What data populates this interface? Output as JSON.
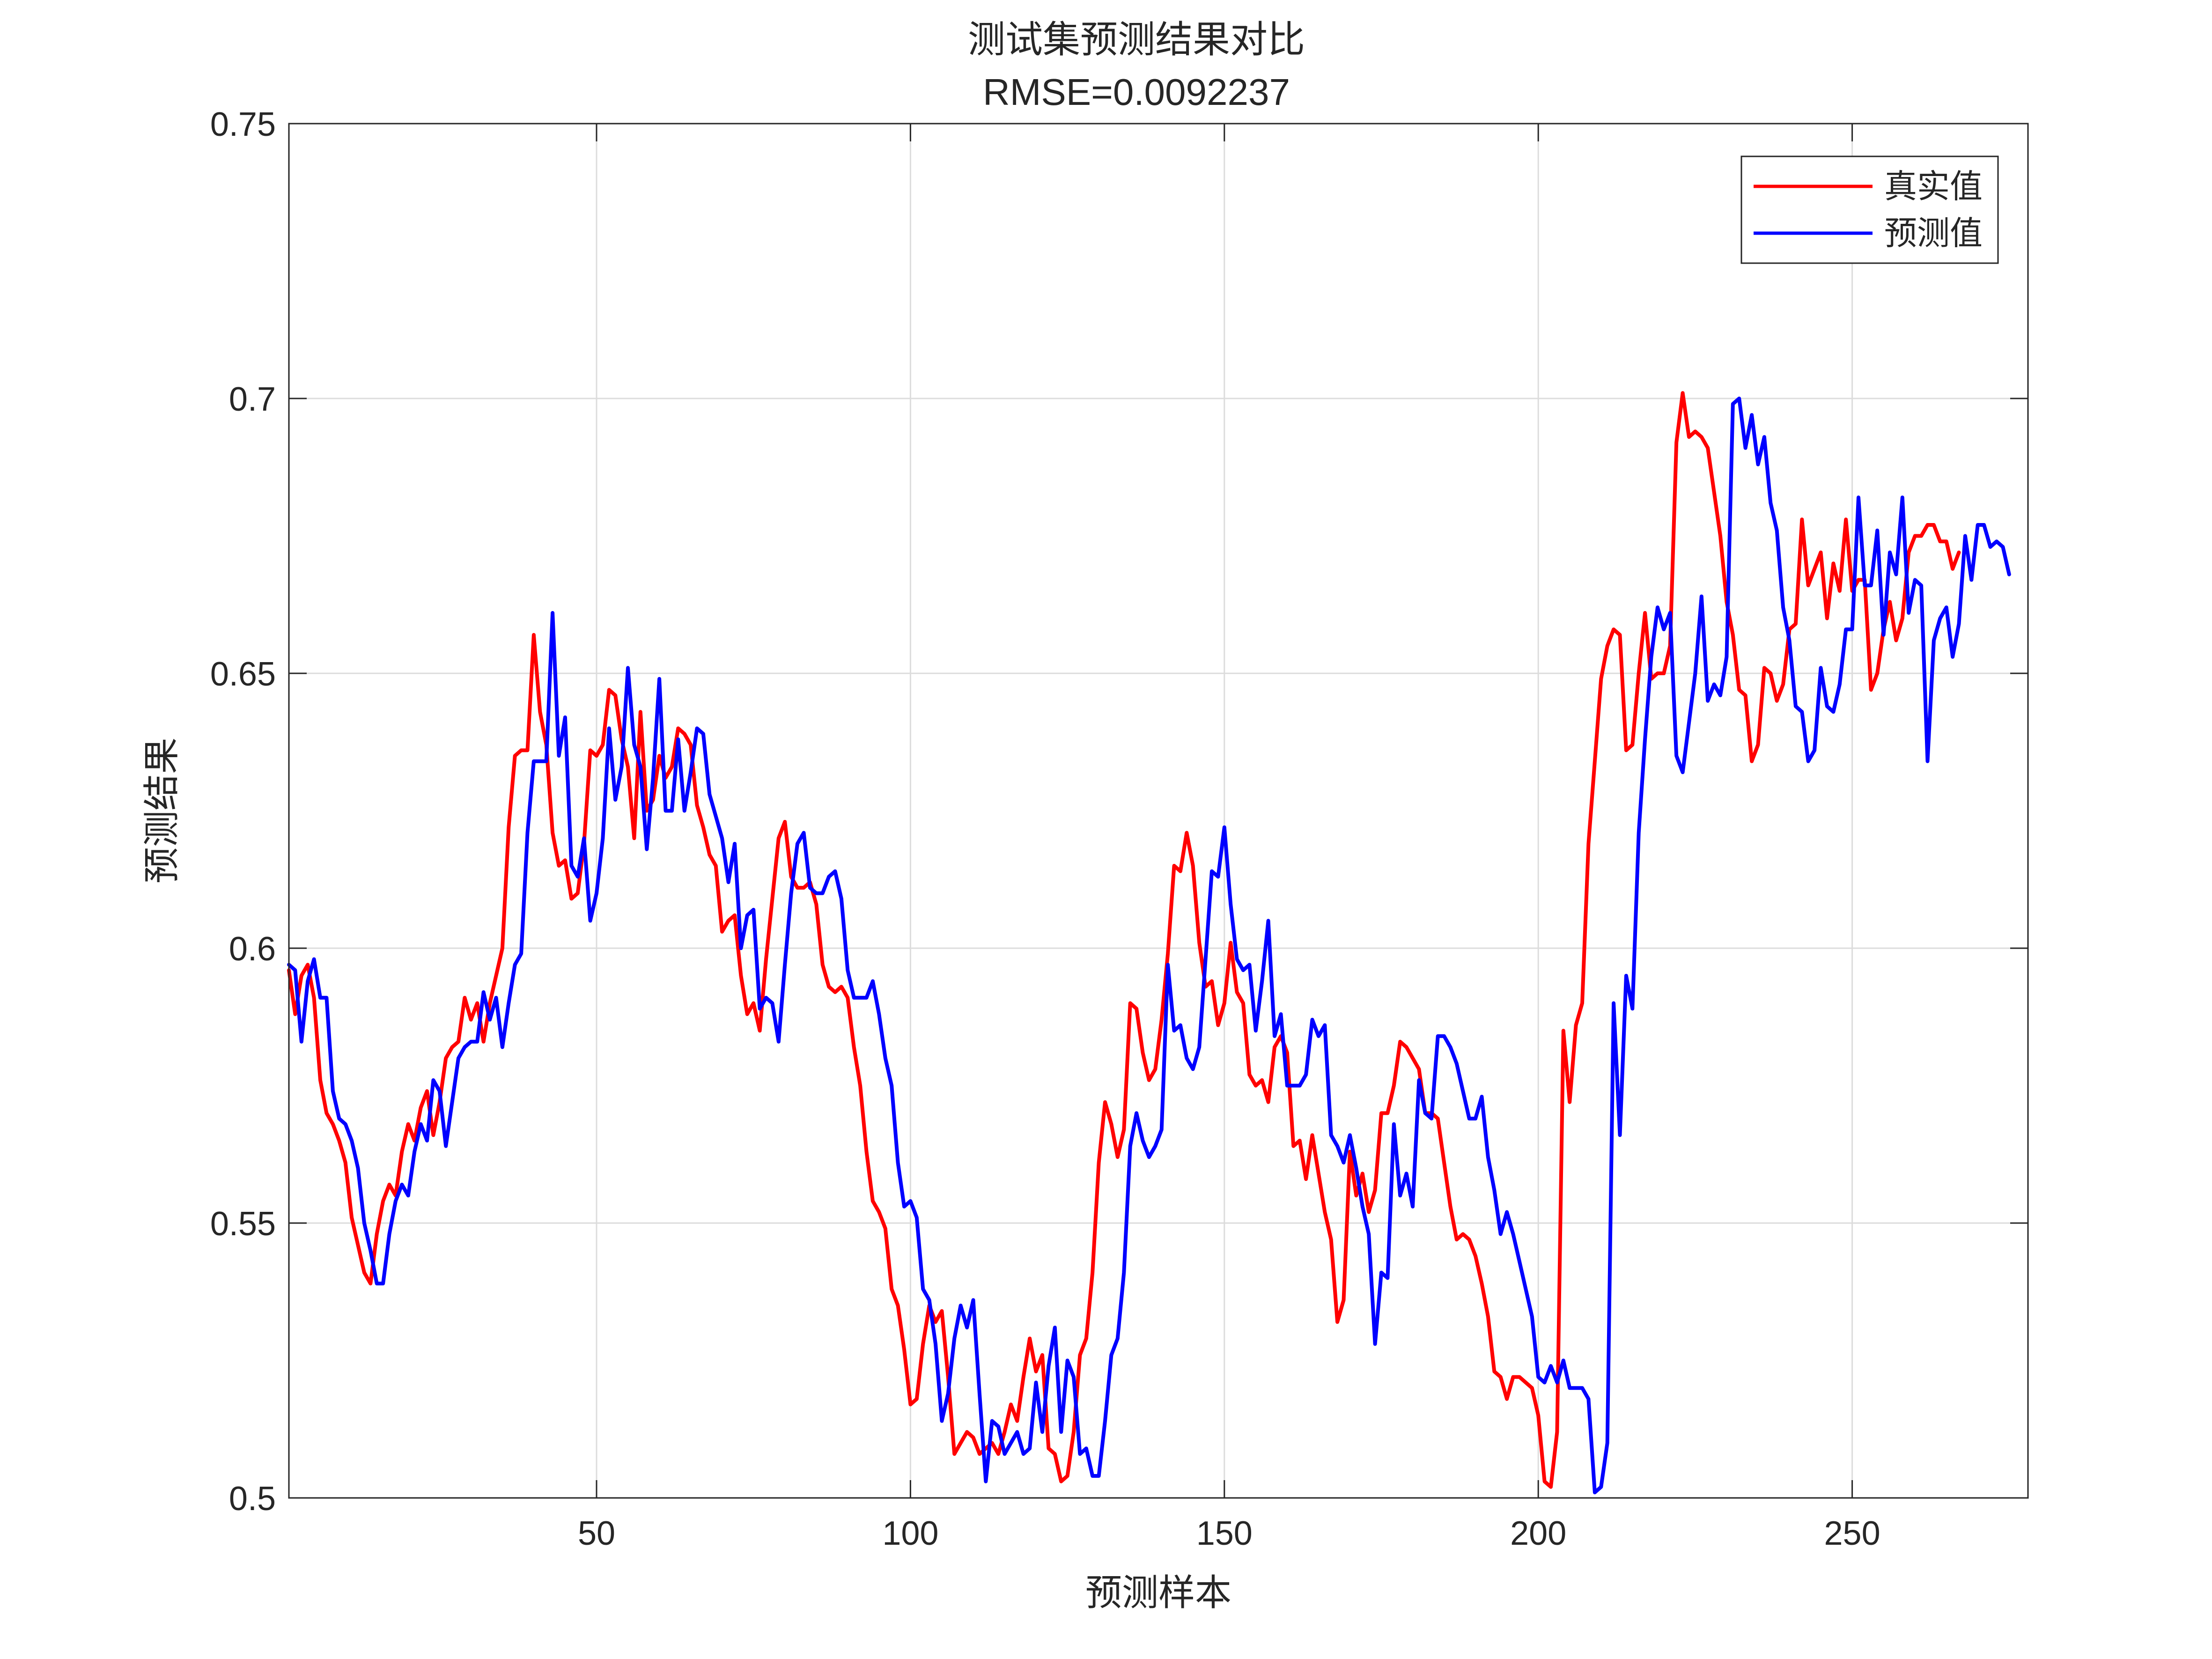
{
  "chart_data": {
    "type": "line",
    "title": "测试集预测结果对比",
    "subtitle": "RMSE=0.0092237",
    "xlabel": "预测样本",
    "ylabel": "预测结果",
    "xlim": [
      1,
      278
    ],
    "ylim": [
      0.5,
      0.75
    ],
    "xticks": [
      50,
      100,
      150,
      200,
      250
    ],
    "yticks": [
      0.5,
      0.55,
      0.6,
      0.65,
      0.7,
      0.75
    ],
    "xtick_labels": [
      "50",
      "100",
      "150",
      "200",
      "250"
    ],
    "ytick_labels": [
      "0.5",
      "0.55",
      "0.6",
      "0.65",
      "0.7",
      "0.75"
    ],
    "grid": true,
    "legend_position": "top-right",
    "series": [
      {
        "name": "真实值",
        "color": "#ff0000",
        "values": [
          0.596,
          0.588,
          0.595,
          0.597,
          0.591,
          0.576,
          0.57,
          0.568,
          0.565,
          0.561,
          0.551,
          0.546,
          0.541,
          0.539,
          0.548,
          0.554,
          0.557,
          0.555,
          0.563,
          0.568,
          0.565,
          0.571,
          0.574,
          0.566,
          0.572,
          0.58,
          0.582,
          0.583,
          0.591,
          0.587,
          0.59,
          0.583,
          0.59,
          0.595,
          0.6,
          0.622,
          0.635,
          0.636,
          0.636,
          0.657,
          0.643,
          0.637,
          0.621,
          0.615,
          0.616,
          0.609,
          0.61,
          0.619,
          0.636,
          0.635,
          0.637,
          0.647,
          0.646,
          0.638,
          0.633,
          0.62,
          0.643,
          0.625,
          0.627,
          0.635,
          0.631,
          0.633,
          0.64,
          0.639,
          0.637,
          0.626,
          0.622,
          0.617,
          0.615,
          0.603,
          0.605,
          0.606,
          0.595,
          0.588,
          0.59,
          0.585,
          0.598,
          0.609,
          0.62,
          0.623,
          0.613,
          0.611,
          0.611,
          0.612,
          0.608,
          0.597,
          0.593,
          0.592,
          0.593,
          0.591,
          0.582,
          0.575,
          0.563,
          0.554,
          0.552,
          0.549,
          0.538,
          0.535,
          0.527,
          0.517,
          0.518,
          0.528,
          0.535,
          0.532,
          0.534,
          0.522,
          0.508,
          0.51,
          0.512,
          0.511,
          0.508,
          0.509,
          0.51,
          0.508,
          0.512,
          0.517,
          0.514,
          0.522,
          0.529,
          0.523,
          0.526,
          0.509,
          0.508,
          0.503,
          0.504,
          0.512,
          0.526,
          0.529,
          0.541,
          0.561,
          0.572,
          0.568,
          0.562,
          0.567,
          0.59,
          0.589,
          0.581,
          0.576,
          0.578,
          0.587,
          0.599,
          0.615,
          0.614,
          0.621,
          0.615,
          0.601,
          0.593,
          0.594,
          0.586,
          0.59,
          0.601,
          0.592,
          0.59,
          0.577,
          0.575,
          0.576,
          0.572,
          0.582,
          0.584,
          0.581,
          0.564,
          0.565,
          0.558,
          0.566,
          0.559,
          0.552,
          0.547,
          0.532,
          0.536,
          0.563,
          0.555,
          0.559,
          0.552,
          0.556,
          0.57,
          0.57,
          0.575,
          0.583,
          0.582,
          0.58,
          0.578,
          0.57,
          0.57,
          0.569,
          0.561,
          0.553,
          0.547,
          0.548,
          0.547,
          0.544,
          0.539,
          0.533,
          0.523,
          0.522,
          0.518,
          0.522,
          0.522,
          0.521,
          0.52,
          0.515,
          0.503,
          0.502,
          0.512,
          0.585,
          0.572,
          0.586,
          0.59,
          0.619,
          0.634,
          0.649,
          0.655,
          0.658,
          0.657,
          0.636,
          0.637,
          0.65,
          0.661,
          0.649,
          0.65,
          0.65,
          0.655,
          0.692,
          0.701,
          0.693,
          0.694,
          0.693,
          0.691,
          0.683,
          0.675,
          0.663,
          0.657,
          0.647,
          0.646,
          0.634,
          0.637,
          0.651,
          0.65,
          0.645,
          0.648,
          0.658,
          0.659,
          0.678,
          0.666,
          0.669,
          0.672,
          0.66,
          0.67,
          0.665,
          0.678,
          0.665,
          0.667,
          0.667,
          0.647,
          0.65,
          0.658,
          0.663,
          0.656,
          0.66,
          0.672,
          0.675,
          0.675,
          0.677,
          0.677,
          0.674,
          0.674,
          0.669,
          0.672
        ]
      },
      {
        "name": "预测值",
        "color": "#0000ff",
        "values": [
          0.597,
          0.596,
          0.583,
          0.594,
          0.598,
          0.591,
          0.591,
          0.574,
          0.569,
          0.568,
          0.565,
          0.56,
          0.55,
          0.545,
          0.539,
          0.539,
          0.548,
          0.554,
          0.557,
          0.555,
          0.563,
          0.568,
          0.565,
          0.576,
          0.574,
          0.564,
          0.572,
          0.58,
          0.582,
          0.583,
          0.583,
          0.592,
          0.587,
          0.591,
          0.582,
          0.59,
          0.597,
          0.599,
          0.621,
          0.634,
          0.634,
          0.634,
          0.661,
          0.635,
          0.642,
          0.615,
          0.613,
          0.62,
          0.605,
          0.61,
          0.62,
          0.64,
          0.627,
          0.633,
          0.651,
          0.637,
          0.633,
          0.618,
          0.631,
          0.649,
          0.625,
          0.625,
          0.638,
          0.625,
          0.632,
          0.64,
          0.639,
          0.628,
          0.624,
          0.62,
          0.612,
          0.619,
          0.6,
          0.606,
          0.607,
          0.589,
          0.591,
          0.59,
          0.583,
          0.597,
          0.61,
          0.619,
          0.621,
          0.611,
          0.61,
          0.61,
          0.613,
          0.614,
          0.609,
          0.596,
          0.591,
          0.591,
          0.591,
          0.594,
          0.588,
          0.58,
          0.575,
          0.561,
          0.553,
          0.554,
          0.551,
          0.538,
          0.536,
          0.528,
          0.514,
          0.519,
          0.529,
          0.535,
          0.531,
          0.536,
          0.519,
          0.503,
          0.514,
          0.513,
          0.508,
          0.51,
          0.512,
          0.508,
          0.509,
          0.521,
          0.512,
          0.524,
          0.531,
          0.512,
          0.525,
          0.522,
          0.508,
          0.509,
          0.504,
          0.504,
          0.514,
          0.526,
          0.529,
          0.541,
          0.564,
          0.57,
          0.565,
          0.562,
          0.564,
          0.567,
          0.597,
          0.585,
          0.586,
          0.58,
          0.578,
          0.582,
          0.598,
          0.614,
          0.613,
          0.622,
          0.608,
          0.598,
          0.596,
          0.597,
          0.585,
          0.594,
          0.605,
          0.584,
          0.588,
          0.575,
          0.575,
          0.575,
          0.577,
          0.587,
          0.584,
          0.586,
          0.566,
          0.564,
          0.561,
          0.566,
          0.56,
          0.553,
          0.548,
          0.528,
          0.541,
          0.54,
          0.568,
          0.555,
          0.559,
          0.553,
          0.576,
          0.57,
          0.569,
          0.584,
          0.584,
          0.582,
          0.579,
          0.574,
          0.569,
          0.569,
          0.573,
          0.562,
          0.556,
          0.548,
          0.552,
          0.548,
          0.543,
          0.538,
          0.533,
          0.522,
          0.521,
          0.524,
          0.521,
          0.525,
          0.52,
          0.52,
          0.52,
          0.518,
          0.501,
          0.502,
          0.51,
          0.59,
          0.566,
          0.595,
          0.589,
          0.621,
          0.638,
          0.653,
          0.662,
          0.658,
          0.661,
          0.635,
          0.632,
          0.641,
          0.65,
          0.664,
          0.645,
          0.648,
          0.646,
          0.653,
          0.699,
          0.7,
          0.691,
          0.697,
          0.688,
          0.693,
          0.681,
          0.676,
          0.662,
          0.656,
          0.644,
          0.643,
          0.634,
          0.636,
          0.651,
          0.644,
          0.643,
          0.648,
          0.658,
          0.658,
          0.682,
          0.666,
          0.666,
          0.676,
          0.657,
          0.672,
          0.668,
          0.682,
          0.661,
          0.667,
          0.666,
          0.634,
          0.656,
          0.66,
          0.662,
          0.653,
          0.659,
          0.675,
          0.667,
          0.677,
          0.677,
          0.673,
          0.674,
          0.673,
          0.668
        ]
      }
    ]
  }
}
